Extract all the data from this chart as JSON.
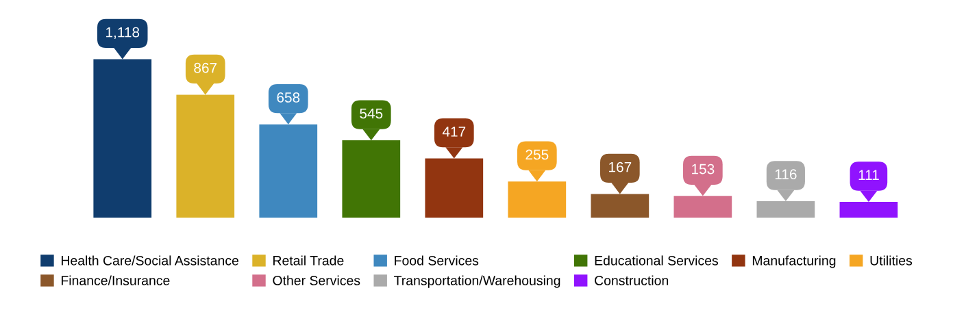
{
  "chart_data": {
    "type": "bar",
    "categories": [
      null,
      null,
      null,
      null,
      null,
      null,
      null,
      null,
      null,
      null
    ],
    "series": [
      {
        "name": "Health Care/Social Assistance",
        "color": "#103d6e",
        "values": [
          1118,
          null,
          null,
          null,
          null,
          null,
          null,
          null,
          null,
          null
        ],
        "value_labels": [
          "1,118",
          null,
          null,
          null,
          null,
          null,
          null,
          null,
          null,
          null
        ]
      },
      {
        "name": "Retail Trade",
        "color": "#dbb229",
        "values": [
          null,
          867,
          null,
          null,
          null,
          null,
          null,
          null,
          null,
          null
        ],
        "value_labels": [
          null,
          "867",
          null,
          null,
          null,
          null,
          null,
          null,
          null,
          null
        ]
      },
      {
        "name": "Food Services",
        "color": "#3f88bf",
        "values": [
          null,
          null,
          658,
          null,
          null,
          null,
          null,
          null,
          null,
          null
        ],
        "value_labels": [
          null,
          null,
          "658",
          null,
          null,
          null,
          null,
          null,
          null,
          null
        ]
      },
      {
        "name": "Educational Services",
        "color": "#417505",
        "values": [
          null,
          null,
          null,
          545,
          null,
          null,
          null,
          null,
          null,
          null
        ],
        "value_labels": [
          null,
          null,
          null,
          "545",
          null,
          null,
          null,
          null,
          null,
          null
        ]
      },
      {
        "name": "Manufacturing",
        "color": "#923510",
        "values": [
          null,
          null,
          null,
          null,
          417,
          null,
          null,
          null,
          null,
          null
        ],
        "value_labels": [
          null,
          null,
          null,
          null,
          "417",
          null,
          null,
          null,
          null,
          null
        ]
      },
      {
        "name": "Utilities",
        "color": "#f5a623",
        "values": [
          null,
          null,
          null,
          null,
          null,
          255,
          null,
          null,
          null,
          null
        ],
        "value_labels": [
          null,
          null,
          null,
          null,
          null,
          "255",
          null,
          null,
          null,
          null
        ]
      },
      {
        "name": "Finance/Insurance",
        "color": "#8b572a",
        "values": [
          null,
          null,
          null,
          null,
          null,
          null,
          167,
          null,
          null,
          null
        ],
        "value_labels": [
          null,
          null,
          null,
          null,
          null,
          null,
          "167",
          null,
          null,
          null
        ]
      },
      {
        "name": "Other Services",
        "color": "#d36f8b",
        "values": [
          null,
          null,
          null,
          null,
          null,
          null,
          null,
          153,
          null,
          null
        ],
        "value_labels": [
          null,
          null,
          null,
          null,
          null,
          null,
          null,
          "153",
          null,
          null
        ]
      },
      {
        "name": "Transportation/Warehousing",
        "color": "#aaaaaa",
        "values": [
          null,
          null,
          null,
          null,
          null,
          null,
          null,
          null,
          116,
          null
        ],
        "value_labels": [
          null,
          null,
          null,
          null,
          null,
          null,
          null,
          null,
          "116",
          null
        ]
      },
      {
        "name": "Construction",
        "color": "#9013fe",
        "values": [
          null,
          null,
          null,
          null,
          null,
          null,
          null,
          null,
          null,
          111
        ],
        "value_labels": [
          null,
          null,
          null,
          null,
          null,
          null,
          null,
          null,
          null,
          "111"
        ]
      }
    ],
    "stacked": true,
    "legend": "bottom"
  }
}
